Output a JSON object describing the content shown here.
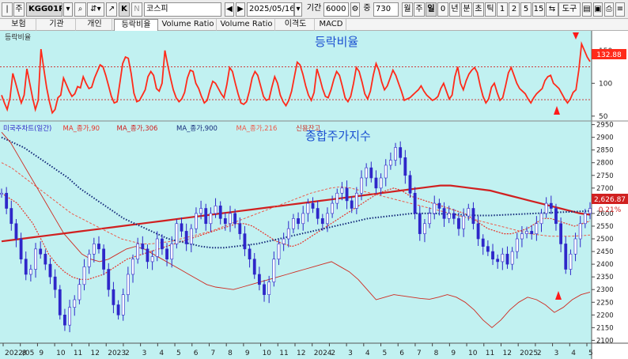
{
  "toolbar": {
    "market_code": "주",
    "symbol": "KGG01P",
    "symbol_name": "코스피",
    "date": "2025/05/16",
    "period_label": "기간",
    "period_value": "6000",
    "count_label": "중",
    "count_value": "730",
    "k_button": "K",
    "n_button": "N",
    "timeframes": [
      "월",
      "주",
      "일",
      "0",
      "년",
      "분",
      "초",
      "틱",
      "1",
      "2",
      "5",
      "15"
    ],
    "timeframe_selected": "일",
    "tools_label": "도구"
  },
  "tabs": [
    {
      "label": "보험",
      "active": false
    },
    {
      "label": "기관",
      "active": false
    },
    {
      "label": "개인",
      "active": false
    },
    {
      "label": "등락비율",
      "active": true
    },
    {
      "label": "Volume Ratio",
      "active": false
    },
    {
      "label": "Volume Ratio",
      "active": false
    },
    {
      "label": "이격도",
      "active": false
    },
    {
      "label": "MACD",
      "active": false
    }
  ],
  "colors": {
    "background": "#c1f1f1",
    "adr": "#ff2a1a",
    "price": "#2e27c9",
    "annotation": "#1a4fd1",
    "ma90": "#e8342a",
    "ma306": "#d02020",
    "ma900": "#142a7a",
    "ma216": "#ee5a4a",
    "credit": "#cf2a20"
  },
  "chart_data": [
    {
      "type": "line",
      "name": "adr-panel",
      "title": "",
      "indicator_label": "등락비율",
      "annotation": "등락비율",
      "y_ticks": [
        50,
        100,
        150
      ],
      "ylim": [
        45,
        175
      ],
      "reference_lines": [
        75,
        125
      ],
      "last_value": "132.88",
      "series": [
        {
          "name": "등락비율",
          "color": "#ff2a1a",
          "values": [
            82,
            70,
            60,
            78,
            115,
            100,
            84,
            70,
            82,
            122,
            100,
            78,
            60,
            74,
            152,
            122,
            93,
            72,
            55,
            60,
            78,
            82,
            108,
            98,
            88,
            80,
            84,
            95,
            93,
            110,
            100,
            92,
            94,
            108,
            118,
            128,
            125,
            112,
            96,
            80,
            70,
            72,
            100,
            130,
            140,
            138,
            115,
            85,
            72,
            74,
            82,
            90,
            110,
            118,
            112,
            92,
            88,
            100,
            150,
            128,
            108,
            90,
            78,
            72,
            76,
            86,
            108,
            120,
            118,
            100,
            92,
            80,
            70,
            74,
            90,
            103,
            100,
            92,
            84,
            78,
            98,
            124,
            118,
            100,
            84,
            70,
            68,
            72,
            88,
            108,
            118,
            112,
            96,
            80,
            74,
            76,
            94,
            110,
            100,
            82,
            72,
            66,
            74,
            88,
            110,
            132,
            128,
            114,
            96,
            82,
            74,
            86,
            122,
            108,
            92,
            80,
            78,
            90,
            106,
            118,
            112,
            96,
            78,
            72,
            80,
            100,
            124,
            118,
            102,
            84,
            76,
            88,
            112,
            130,
            120,
            102,
            90,
            96,
            108,
            120,
            112,
            100,
            88,
            74,
            76,
            78,
            82,
            86,
            90,
            96,
            88,
            82,
            78,
            74,
            76,
            80,
            92,
            100,
            88,
            76,
            82,
            110,
            125,
            100,
            90,
            104,
            114,
            120,
            124,
            116,
            96,
            80,
            70,
            76,
            94,
            100,
            86,
            74,
            78,
            96,
            116,
            124,
            112,
            100,
            92,
            88,
            84,
            76,
            70,
            78,
            84,
            88,
            92,
            104,
            110,
            112,
            100,
            96,
            92,
            84,
            76,
            70,
            76,
            86,
            90,
            120,
            160,
            150,
            140,
            133
          ]
        }
      ]
    },
    {
      "type": "line",
      "name": "kospi-panel",
      "title": "",
      "annotation": "종합주가지수",
      "legend": [
        "미국주차트(일간)",
        "MA_종가,90",
        "MA_종가,306",
        "MA_종가,900",
        "MA_종가,216",
        "신용잔고"
      ],
      "y_ticks": [
        2100,
        2150,
        2200,
        2250,
        2300,
        2350,
        2400,
        2450,
        2500,
        2550,
        2600,
        2650,
        2700,
        2750,
        2800,
        2850,
        2900,
        2950
      ],
      "ylim": [
        2095,
        2955
      ],
      "last_price": "2,626.87",
      "last_change": "0.21%",
      "x_labels": [
        "2022/05",
        "8",
        "9",
        "10",
        "11",
        "12",
        "2023",
        "2",
        "3",
        "4",
        "5",
        "6",
        "7",
        "8",
        "9",
        "10",
        "11",
        "12",
        "2024",
        "2",
        "3",
        "4",
        "5",
        "6",
        "7",
        "8",
        "9",
        "10",
        "11",
        "12",
        "2025",
        "2",
        "3",
        "4",
        "5"
      ],
      "series": [
        {
          "name": "종합주가지수",
          "color": "#2e27c9",
          "values": [
            2680,
            2620,
            2560,
            2500,
            2420,
            2360,
            2380,
            2460,
            2440,
            2400,
            2350,
            2300,
            2200,
            2160,
            2230,
            2260,
            2320,
            2390,
            2440,
            2480,
            2460,
            2380,
            2300,
            2240,
            2200,
            2280,
            2360,
            2420,
            2480,
            2460,
            2410,
            2430,
            2500,
            2460,
            2420,
            2480,
            2560,
            2530,
            2480,
            2540,
            2600,
            2620,
            2560,
            2600,
            2630,
            2580,
            2560,
            2600,
            2560,
            2520,
            2460,
            2420,
            2360,
            2320,
            2280,
            2330,
            2420,
            2480,
            2500,
            2540,
            2580,
            2560,
            2600,
            2640,
            2620,
            2580,
            2560,
            2600,
            2640,
            2680,
            2700,
            2650,
            2620,
            2680,
            2740,
            2780,
            2740,
            2700,
            2740,
            2790,
            2810,
            2860,
            2820,
            2750,
            2680,
            2600,
            2520,
            2560,
            2600,
            2640,
            2620,
            2580,
            2600,
            2580,
            2540,
            2590,
            2620,
            2560,
            2500,
            2470,
            2450,
            2420,
            2410,
            2440,
            2400,
            2450,
            2500,
            2520,
            2530,
            2520,
            2560,
            2600,
            2640,
            2620,
            2560,
            2480,
            2380,
            2440,
            2500,
            2560,
            2600,
            2620
          ]
        },
        {
          "name": "MA_종가,90",
          "color": "#e8342a",
          "values": [
            2680,
            2660,
            2640,
            2600,
            2560,
            2500,
            2440,
            2400,
            2370,
            2350,
            2340,
            2340,
            2350,
            2360,
            2380,
            2400,
            2420,
            2430,
            2440,
            2450,
            2460,
            2470,
            2480,
            2490,
            2500,
            2510,
            2520,
            2530,
            2540,
            2550,
            2560,
            2560,
            2550,
            2530,
            2510,
            2490,
            2480,
            2470,
            2480,
            2500,
            2520,
            2540,
            2560,
            2580,
            2600,
            2620,
            2640,
            2660,
            2680,
            2690,
            2700,
            2690,
            2670,
            2660,
            2650,
            2640,
            2630,
            2620,
            2610,
            2600,
            2580,
            2560,
            2540,
            2530,
            2520,
            2520,
            2530,
            2540,
            2560,
            2580,
            2580,
            2570,
            2560,
            2550,
            2560,
            2570
          ]
        },
        {
          "name": "MA_종가,306",
          "color": "#d02020",
          "values": [
            2490,
            2495,
            2500,
            2505,
            2510,
            2515,
            2520,
            2525,
            2530,
            2535,
            2540,
            2545,
            2550,
            2555,
            2560,
            2565,
            2570,
            2575,
            2580,
            2585,
            2590,
            2595,
            2600,
            2605,
            2610,
            2615,
            2620,
            2625,
            2630,
            2635,
            2640,
            2645,
            2650,
            2655,
            2660,
            2665,
            2670,
            2675,
            2680,
            2685,
            2690,
            2695,
            2700,
            2705,
            2710,
            2710,
            2705,
            2700,
            2695,
            2690,
            2680,
            2670,
            2660,
            2650,
            2640,
            2630,
            2620,
            2610,
            2600,
            2595
          ]
        },
        {
          "name": "MA_종가,900",
          "color": "#142a7a",
          "values": [
            2900,
            2880,
            2860,
            2830,
            2800,
            2770,
            2740,
            2700,
            2670,
            2640,
            2610,
            2580,
            2560,
            2540,
            2520,
            2500,
            2490,
            2480,
            2470,
            2465,
            2465,
            2470,
            2475,
            2480,
            2490,
            2500,
            2510,
            2520,
            2530,
            2540,
            2550,
            2560,
            2570,
            2580,
            2585,
            2590,
            2595,
            2600,
            2600,
            2600,
            2598,
            2596,
            2594,
            2592,
            2592,
            2594,
            2596,
            2598,
            2600,
            2602,
            2604,
            2606,
            2608,
            2610
          ]
        },
        {
          "name": "MA_종가,216",
          "color": "#ee5a4a",
          "values": [
            2800,
            2780,
            2750,
            2720,
            2690,
            2660,
            2630,
            2600,
            2580,
            2560,
            2540,
            2520,
            2500,
            2490,
            2480,
            2480,
            2485,
            2490,
            2500,
            2510,
            2520,
            2530,
            2545,
            2560,
            2575,
            2590,
            2605,
            2620,
            2635,
            2650,
            2665,
            2680,
            2690,
            2700,
            2705,
            2700,
            2690,
            2680,
            2670,
            2660,
            2650,
            2640,
            2630,
            2620,
            2610,
            2600,
            2590,
            2580,
            2570,
            2560,
            2550,
            2540,
            2530,
            2520,
            2515,
            2510,
            2510,
            2510,
            2512,
            2515
          ]
        },
        {
          "name": "신용잔고",
          "color": "#cf2a20",
          "values": [
            2920,
            2880,
            2820,
            2760,
            2700,
            2640,
            2580,
            2520,
            2480,
            2440,
            2420,
            2410,
            2420,
            2440,
            2460,
            2470,
            2460,
            2440,
            2420,
            2400,
            2380,
            2360,
            2340,
            2320,
            2310,
            2305,
            2300,
            2310,
            2320,
            2330,
            2340,
            2350,
            2360,
            2370,
            2380,
            2390,
            2400,
            2410,
            2390,
            2370,
            2340,
            2300,
            2260,
            2270,
            2280,
            2275,
            2270,
            2265,
            2262,
            2270,
            2280,
            2270,
            2250,
            2220,
            2180,
            2150,
            2180,
            2220,
            2250,
            2270,
            2260,
            2240,
            2210,
            2230,
            2260,
            2280,
            2290
          ]
        }
      ]
    }
  ]
}
